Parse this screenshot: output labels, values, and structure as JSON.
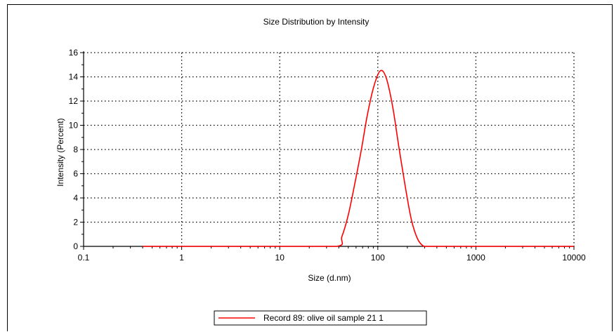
{
  "chart_data": {
    "type": "line",
    "title": "Size Distribution by Intensity",
    "xlabel": "Size (d.nm)",
    "ylabel": "Intensity (Percent)",
    "x_scale": "log",
    "xlim": [
      0.1,
      10000
    ],
    "ylim": [
      0,
      16
    ],
    "x_ticks": [
      "0.1",
      "1",
      "10",
      "100",
      "1000",
      "10000"
    ],
    "y_ticks": [
      "0",
      "2",
      "4",
      "6",
      "8",
      "10",
      "12",
      "14",
      "16"
    ],
    "grid": true,
    "legend_position": "bottom-center",
    "series": [
      {
        "name": "Record 89: olive oil sample 21 1",
        "color": "#ff0000",
        "x": [
          0.4,
          1,
          10,
          38,
          43,
          50,
          58,
          68,
          78,
          91,
          106,
          122,
          142,
          164,
          190,
          220,
          255,
          295,
          340,
          1000,
          10000
        ],
        "y": [
          0,
          0,
          0,
          0,
          0.8,
          2.6,
          5.1,
          8.0,
          10.8,
          13.2,
          14.5,
          13.9,
          11.5,
          8.2,
          5.0,
          2.2,
          0.6,
          0,
          0,
          0,
          0
        ]
      }
    ]
  }
}
